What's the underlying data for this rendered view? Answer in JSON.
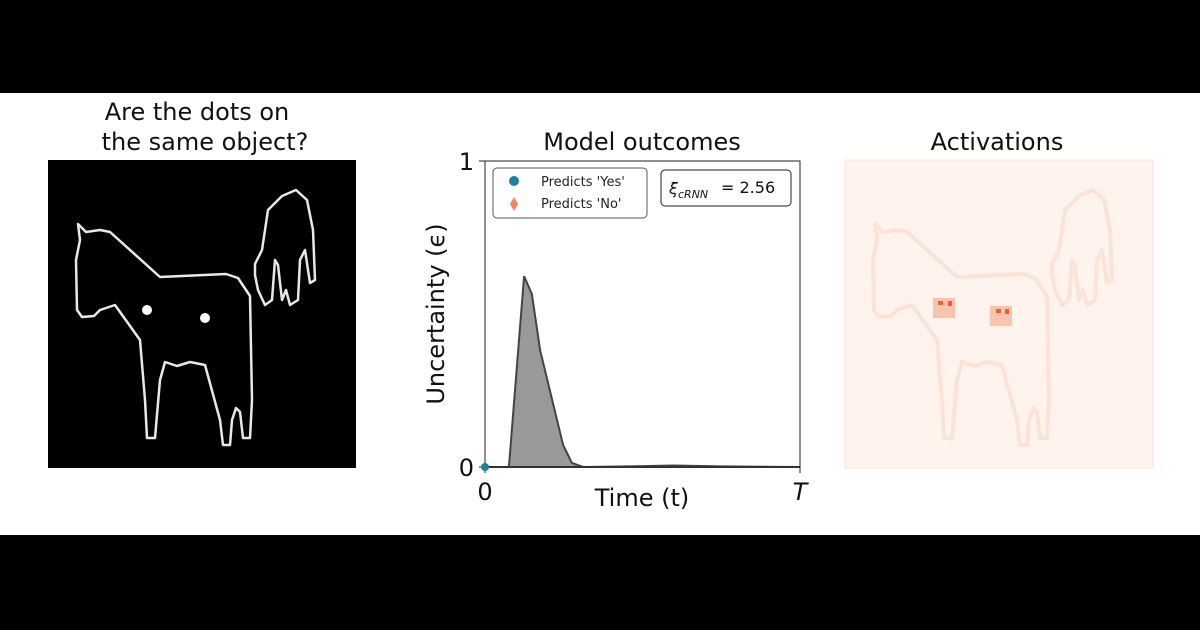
{
  "panels": {
    "stimulus": {
      "title_line1": "Are the dots on",
      "title_line2": "the same object?"
    },
    "outcomes": {
      "title": "Model outcomes"
    },
    "activations": {
      "title": "Activations"
    }
  },
  "chart_data": {
    "type": "area",
    "title": "Model outcomes",
    "xlabel": "Time (t)",
    "ylabel": "Uncertainty (ϵ)",
    "xlim": [
      0,
      1
    ],
    "ylim": [
      0,
      1
    ],
    "xtick_labels": [
      "0",
      "T"
    ],
    "ytick_labels": [
      "0",
      "1"
    ],
    "grid": false,
    "x": [
      0,
      0.076,
      0.124,
      0.149,
      0.175,
      0.248,
      0.276,
      0.311,
      0.5,
      0.6,
      0.75,
      1.0
    ],
    "y": [
      0,
      0,
      0.624,
      0.565,
      0.382,
      0.072,
      0.013,
      0,
      0.003,
      0.005,
      0.002,
      0
    ],
    "fill_color": "#999999",
    "line_color": "#444444",
    "legend": {
      "placement": "top-left",
      "entries": [
        {
          "label": "Predicts 'Yes'",
          "marker": "circle",
          "color": "#1f7fa0"
        },
        {
          "label": "Predicts 'No'",
          "marker": "diamond",
          "color": "#f4845f"
        }
      ]
    },
    "annotation": {
      "symbol": "ξ",
      "subscript": "cRNN",
      "text": "= 2.56"
    },
    "markers": [
      {
        "series": "Predicts 'Yes'",
        "x": 0,
        "y": 0
      }
    ]
  },
  "colors": {
    "activation_bg": "#fff3ee",
    "activation_hot": "#e8603c"
  }
}
